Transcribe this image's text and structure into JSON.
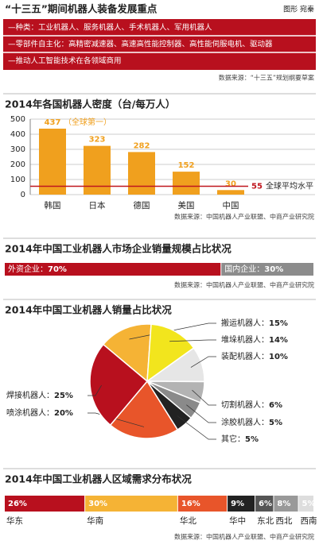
{
  "header": {
    "title": "“十三五”期间机器人装备发展重点",
    "credit": "图形 宛秦",
    "items": [
      "—种类：工业机器人、服务机器人、手术机器人、军用机器人",
      "—零部件自主化：高精密减速器、高速高性能控制器、高性能伺服电机、驱动器",
      "—推动人工智能技术在各领域商用"
    ],
    "source": "数据来源：“十三五”规划纲要草案"
  },
  "chart_data": [
    {
      "type": "bar",
      "title": "2014年各国机器人密度（台/每万人）",
      "categories": [
        "韩国",
        "日本",
        "德国",
        "美国",
        "中国"
      ],
      "values": [
        437,
        323,
        282,
        152,
        30
      ],
      "color": "#f0a01e",
      "ylim": [
        0,
        500
      ],
      "yticks": [
        0,
        100,
        200,
        300,
        400,
        500
      ],
      "grid": true,
      "annotations": [
        "（全球第一）"
      ],
      "reference_line": {
        "value": 55,
        "label": "全球平均水平",
        "color": "#c0161e"
      },
      "source": "数据来源：中国机器人产业联盟、中商产业研究院"
    },
    {
      "type": "stacked-bar",
      "title": "2014年中国工业机器人市场企业销量规模占比状况",
      "xlim": [
        0,
        100
      ],
      "labels": "inside",
      "series": [
        {
          "name": "外资企业：",
          "color": "#b8101e",
          "values": [
            70
          ],
          "value_labels": [
            "70%"
          ]
        },
        {
          "name": "国内企业：",
          "color": "#8c8c8c",
          "values": [
            30
          ],
          "value_labels": [
            "30%"
          ]
        }
      ],
      "source": "数据来源：中国机器人产业联盟、中商产业研究院"
    },
    {
      "type": "pie",
      "title": "2014年中国工业机器人销量占比状况",
      "categories": [
        "搬运机器人：",
        "堆垛机器人：",
        "装配机器人：",
        "切割机器人：",
        "涂胶机器人：",
        "其它：",
        "喷涂机器人：",
        "焊接机器人："
      ],
      "values": [
        15,
        14,
        10,
        6,
        5,
        5,
        20,
        25
      ],
      "value_labels": [
        "15%",
        "14%",
        "10%",
        "6%",
        "5%",
        "5%",
        "20%",
        "25%"
      ],
      "colors": [
        "#f5b335",
        "#f2e51d",
        "#e6e6e6",
        "#b3b3b3",
        "#8a8a8a",
        "#222222",
        "#e8552a",
        "#b8101e"
      ]
    },
    {
      "type": "stacked-bar",
      "title": "2014年中国工业机器人区域需求分布状况",
      "xlim": [
        0,
        100
      ],
      "labels": "below",
      "series": [
        {
          "name": "华东",
          "color": "#b8101e",
          "values": [
            26
          ],
          "value_labels": [
            "26%"
          ]
        },
        {
          "name": "华南",
          "color": "#f5b335",
          "values": [
            30
          ],
          "value_labels": [
            "30%"
          ]
        },
        {
          "name": "华北",
          "color": "#e8552a",
          "values": [
            16
          ],
          "value_labels": [
            "16%"
          ]
        },
        {
          "name": "华中",
          "color": "#222222",
          "values": [
            9
          ],
          "value_labels": [
            "9%"
          ]
        },
        {
          "name": "东北",
          "color": "#555555",
          "values": [
            6
          ],
          "value_labels": [
            "6%"
          ]
        },
        {
          "name": "西北",
          "color": "#999999",
          "values": [
            8
          ],
          "value_labels": [
            "8%"
          ]
        },
        {
          "name": "西南",
          "color": "#dddddd",
          "values": [
            5
          ],
          "value_labels": [
            "5%"
          ]
        }
      ],
      "source": "数据来源：中国机器人产业联盟、中商产业研究院"
    }
  ]
}
